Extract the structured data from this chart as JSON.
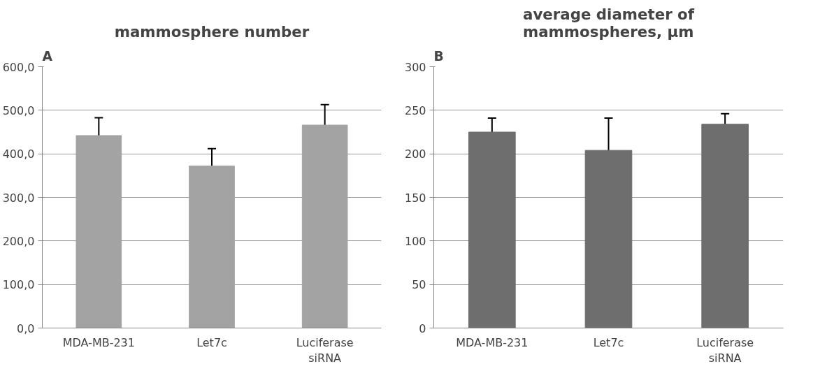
{
  "chart_data": [
    {
      "type": "bar",
      "title": "mammosphere number",
      "categories": [
        "MDA-MB-231",
        "Let7c",
        "Luciferase siRNA"
      ],
      "values": [
        442,
        372,
        466
      ],
      "errors": [
        41,
        40,
        47
      ],
      "color": "#a3a3a3",
      "ylim": [
        0,
        600
      ],
      "yticks": [
        {
          "value": 0,
          "label": "0,0"
        },
        {
          "value": 100,
          "label": "100,0"
        },
        {
          "value": 200,
          "label": "200,0"
        },
        {
          "value": 300,
          "label": "300,0"
        },
        {
          "value": 400,
          "label": "400,0"
        },
        {
          "value": 500,
          "label": "500,0"
        },
        {
          "value": 600,
          "label": "600,0"
        }
      ],
      "grid": "y",
      "annotations": [
        "A"
      ]
    },
    {
      "type": "bar",
      "title": "average diameter of mammospheres, µm",
      "categories": [
        "MDA-MB-231",
        "Let7c",
        "Luciferase siRNA"
      ],
      "values": [
        225,
        204,
        234
      ],
      "errors": [
        16,
        37,
        12
      ],
      "color": "#6e6e6e",
      "ylim": [
        0,
        300
      ],
      "yticks": [
        0,
        50,
        100,
        150,
        200,
        250,
        300
      ],
      "grid": "y",
      "annotations": [
        "B"
      ]
    }
  ]
}
